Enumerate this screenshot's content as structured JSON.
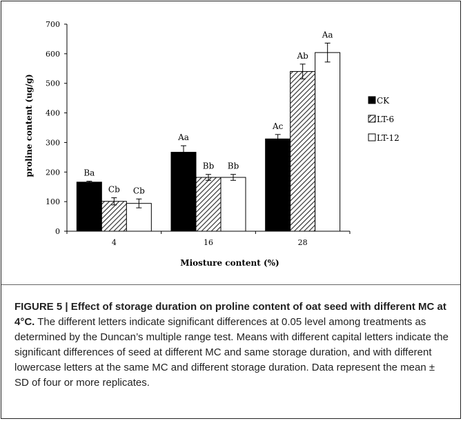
{
  "chart_data": {
    "type": "bar",
    "categories": [
      "4",
      "16",
      "28"
    ],
    "xlabel": "Miosture content (%)",
    "ylabel": "proline content (ug/g)",
    "ylim": [
      0,
      700
    ],
    "yticks": [
      0,
      100,
      200,
      300,
      400,
      500,
      600,
      700
    ],
    "grid": false,
    "legend_position": "right",
    "series": [
      {
        "name": "CK",
        "pattern": "solid",
        "color": "#000000",
        "values": [
          166,
          267,
          312
        ],
        "errors": [
          3,
          22,
          15
        ],
        "labels": [
          "Ba",
          "Aa",
          "Ac"
        ]
      },
      {
        "name": "LT-6",
        "pattern": "hatch",
        "color": "#555555",
        "values": [
          101,
          182,
          540
        ],
        "errors": [
          12,
          10,
          25
        ],
        "labels": [
          "Cb",
          "Bb",
          "Ab"
        ]
      },
      {
        "name": "LT-12",
        "pattern": "open",
        "color": "#ffffff",
        "values": [
          94,
          182,
          604
        ],
        "errors": [
          15,
          10,
          32
        ],
        "labels": [
          "Cb",
          "Bb",
          "Aa"
        ]
      }
    ]
  },
  "caption": {
    "lead": "FIGURE 5 | Effect of storage duration on proline content of oat seed with different MC at 4°C.",
    "body": " The different letters indicate significant differences at 0.05 level among treatments as determined by the Duncan’s multiple range test. Means with different capital letters indicate the significant differences of seed at different MC and same storage duration, and with different lowercase letters at the same MC and different storage duration. Data represent the mean ± SD of four or more replicates."
  }
}
